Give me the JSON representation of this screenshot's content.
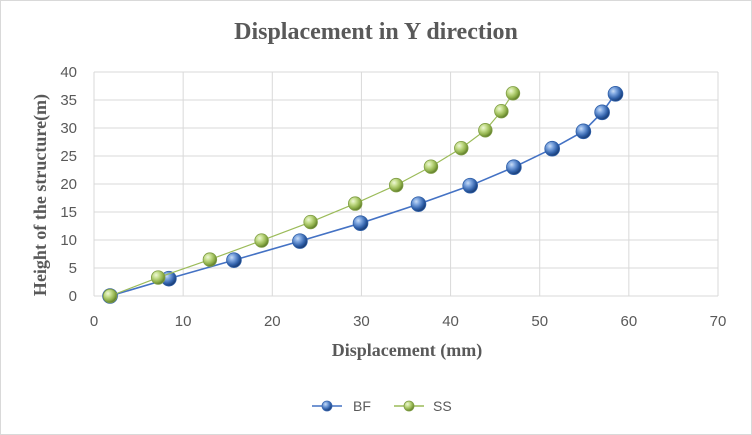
{
  "chart_data": {
    "type": "scatter",
    "title": "Displacement in Y direction",
    "xlabel": "Displacement (mm)",
    "ylabel": "Height of the structure(m)",
    "xlim": [
      0,
      70
    ],
    "ylim": [
      0,
      40
    ],
    "xticks": [
      0,
      10,
      20,
      30,
      40,
      50,
      60,
      70
    ],
    "yticks": [
      0,
      5,
      10,
      15,
      20,
      25,
      30,
      35,
      40
    ],
    "grid": true,
    "legend_position": "bottom",
    "series": [
      {
        "name": "BF",
        "color": "#4472c4",
        "marker": "sphere",
        "x": [
          1.8,
          8.4,
          15.7,
          23.1,
          29.9,
          36.4,
          42.2,
          47.1,
          51.4,
          54.9,
          57.0,
          58.5
        ],
        "y": [
          0,
          3.1,
          6.4,
          9.8,
          13.0,
          16.4,
          19.7,
          23.0,
          26.3,
          29.4,
          32.8,
          36.1
        ]
      },
      {
        "name": "SS",
        "color": "#9bbb59",
        "marker": "sphere",
        "x": [
          1.8,
          7.2,
          13.0,
          18.8,
          24.3,
          29.3,
          33.9,
          37.8,
          41.2,
          43.9,
          45.7,
          47.0
        ],
        "y": [
          0,
          3.3,
          6.5,
          9.9,
          13.2,
          16.5,
          19.8,
          23.1,
          26.4,
          29.6,
          33.0,
          36.2
        ]
      }
    ]
  }
}
